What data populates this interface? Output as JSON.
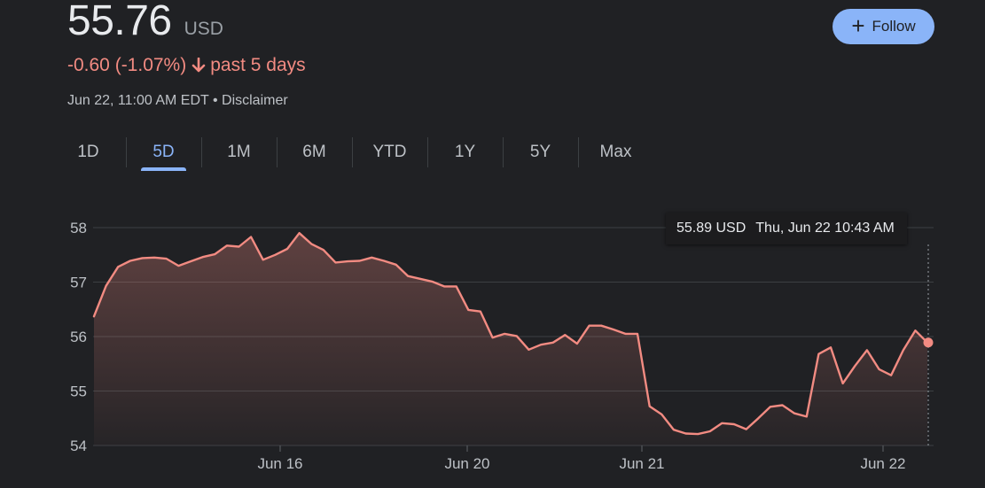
{
  "quote": {
    "price": "55.76",
    "currency": "USD",
    "change": "-0.60 (-1.07%)",
    "period": "past 5 days",
    "timestamp": "Jun 22, 11:00 AM EDT",
    "separator": "•",
    "disclaimer": "Disclaimer"
  },
  "follow_button": {
    "icon": "plus-icon",
    "label": "Follow"
  },
  "tabs": [
    {
      "label": "1D"
    },
    {
      "label": "5D"
    },
    {
      "label": "1M"
    },
    {
      "label": "6M"
    },
    {
      "label": "YTD"
    },
    {
      "label": "1Y"
    },
    {
      "label": "5Y"
    },
    {
      "label": "Max"
    }
  ],
  "active_tab": "5D",
  "tooltip": {
    "price": "55.89 USD",
    "date": "Thu, Jun 22 10:43 AM"
  },
  "colors": {
    "background": "#202124",
    "negative": "#f28b82",
    "accent": "#8ab4f8",
    "grid": "#3c4043",
    "text": "#bdc1c6"
  },
  "chart_data": {
    "type": "area",
    "ylim": [
      54,
      58
    ],
    "yticks": [
      58,
      57,
      56,
      55,
      54
    ],
    "xtick_labels": [
      "Jun 16",
      "Jun 20",
      "Jun 21",
      "Jun 22"
    ],
    "grid": true,
    "values": [
      56.37,
      56.93,
      57.28,
      57.39,
      57.44,
      57.45,
      57.43,
      57.3,
      57.38,
      57.46,
      57.51,
      57.67,
      57.65,
      57.83,
      57.41,
      57.5,
      57.61,
      57.9,
      57.7,
      57.59,
      57.36,
      57.38,
      57.39,
      57.45,
      57.39,
      57.32,
      57.11,
      57.06,
      57.01,
      56.92,
      56.92,
      56.49,
      56.46,
      55.98,
      56.05,
      56.01,
      55.76,
      55.85,
      55.89,
      56.03,
      55.87,
      56.2,
      56.2,
      56.13,
      56.05,
      56.05,
      54.72,
      54.57,
      54.29,
      54.22,
      54.21,
      54.26,
      54.41,
      54.39,
      54.3,
      54.5,
      54.71,
      54.74,
      54.59,
      54.53,
      55.68,
      55.8,
      55.14,
      55.46,
      55.75,
      55.4,
      55.29,
      55.75,
      56.11,
      55.89
    ]
  }
}
